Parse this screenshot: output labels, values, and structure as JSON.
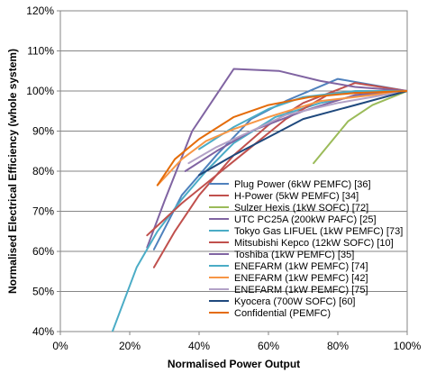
{
  "chart_data": {
    "type": "line",
    "xlabel": "Normalised Power Output",
    "ylabel": "Normalised Electrical Efficiency (whole system)",
    "xlim": [
      0,
      1
    ],
    "ylim": [
      0.4,
      1.2
    ],
    "x_ticks": [
      "0%",
      "20%",
      "40%",
      "60%",
      "80%",
      "100%"
    ],
    "y_ticks": [
      "40%",
      "50%",
      "60%",
      "70%",
      "80%",
      "90%",
      "100%",
      "110%",
      "120%"
    ],
    "grid": "horizontal",
    "legend_position": "inside-right",
    "series": [
      {
        "name": "Plug Power (6kW PEMFC) [36]",
        "color": "#4f81bd",
        "points": [
          [
            0.27,
            0.605
          ],
          [
            0.35,
            0.74
          ],
          [
            0.45,
            0.84
          ],
          [
            0.55,
            0.93
          ],
          [
            0.65,
            0.975
          ],
          [
            0.8,
            1.03
          ],
          [
            1.0,
            1.0
          ]
        ]
      },
      {
        "name": "H-Power (5kW PEMFC) [34]",
        "color": "#c0504d",
        "points": [
          [
            0.27,
            0.56
          ],
          [
            0.33,
            0.65
          ],
          [
            0.4,
            0.74
          ],
          [
            0.5,
            0.84
          ],
          [
            0.6,
            0.915
          ],
          [
            0.7,
            0.97
          ],
          [
            0.85,
            1.02
          ],
          [
            1.0,
            1.0
          ]
        ]
      },
      {
        "name": "Sulzer Hexis (1kW SOFC) [72]",
        "color": "#9bbb59",
        "points": [
          [
            0.73,
            0.82
          ],
          [
            0.83,
            0.925
          ],
          [
            0.9,
            0.965
          ],
          [
            1.0,
            1.0
          ]
        ]
      },
      {
        "name": "UTC PC25A (200kW PAFC) [25]",
        "color": "#8064a2",
        "points": [
          [
            0.25,
            0.61
          ],
          [
            0.3,
            0.725
          ],
          [
            0.38,
            0.9
          ],
          [
            0.5,
            1.055
          ],
          [
            0.63,
            1.05
          ],
          [
            0.75,
            1.025
          ],
          [
            0.85,
            1.01
          ],
          [
            1.0,
            1.0
          ]
        ]
      },
      {
        "name": "Tokyo Gas LIFUEL (1kW PEMFC) [73]",
        "color": "#4bacc6",
        "points": [
          [
            0.15,
            0.4
          ],
          [
            0.22,
            0.56
          ],
          [
            0.28,
            0.65
          ],
          [
            0.35,
            0.73
          ],
          [
            0.42,
            0.8
          ],
          [
            0.5,
            0.87
          ],
          [
            0.62,
            0.935
          ],
          [
            0.75,
            0.97
          ],
          [
            0.87,
            0.99
          ],
          [
            1.0,
            1.0
          ]
        ]
      },
      {
        "name": "Mitsubishi Kepco (12kW SOFC) [10]",
        "color": "#c0504d",
        "points": [
          [
            0.25,
            0.64
          ],
          [
            0.35,
            0.72
          ],
          [
            0.45,
            0.79
          ],
          [
            0.55,
            0.86
          ],
          [
            0.65,
            0.93
          ],
          [
            0.78,
            0.995
          ],
          [
            1.0,
            1.0
          ]
        ]
      },
      {
        "name": "Toshiba (1kW PEMFC) [35]",
        "color": "#8064a2",
        "points": [
          [
            0.36,
            0.8
          ],
          [
            0.45,
            0.85
          ],
          [
            0.55,
            0.9
          ],
          [
            0.7,
            0.95
          ],
          [
            0.85,
            0.99
          ],
          [
            1.0,
            1.0
          ]
        ]
      },
      {
        "name": "ENEFARM (1kW PEMFC) [74]",
        "color": "#4bacc6",
        "points": [
          [
            0.4,
            0.855
          ],
          [
            0.5,
            0.91
          ],
          [
            0.6,
            0.955
          ],
          [
            0.7,
            0.985
          ],
          [
            0.85,
            1.0
          ],
          [
            1.0,
            1.0
          ]
        ]
      },
      {
        "name": "ENEFARM (1kW PEMFC) [42]",
        "color": "#f79646",
        "points": [
          [
            0.28,
            0.765
          ],
          [
            0.35,
            0.83
          ],
          [
            0.42,
            0.875
          ],
          [
            0.5,
            0.905
          ],
          [
            0.6,
            0.935
          ],
          [
            0.75,
            0.975
          ],
          [
            1.0,
            1.0
          ]
        ]
      },
      {
        "name": "ENEFARM (1kW PEMFC) [75]",
        "color": "#b3a2c7",
        "points": [
          [
            0.37,
            0.82
          ],
          [
            0.45,
            0.86
          ],
          [
            0.55,
            0.9
          ],
          [
            0.65,
            0.94
          ],
          [
            0.8,
            0.97
          ],
          [
            1.0,
            1.0
          ]
        ]
      },
      {
        "name": "Kyocera (700W SOFC) [60]",
        "color": "#1f497d",
        "points": [
          [
            0.4,
            0.79
          ],
          [
            0.5,
            0.84
          ],
          [
            0.6,
            0.885
          ],
          [
            0.7,
            0.93
          ],
          [
            0.85,
            0.965
          ],
          [
            1.0,
            1.0
          ]
        ]
      },
      {
        "name": "Confidential (PEMFC)",
        "color": "#e46c0a",
        "points": [
          [
            0.28,
            0.765
          ],
          [
            0.33,
            0.83
          ],
          [
            0.4,
            0.88
          ],
          [
            0.5,
            0.935
          ],
          [
            0.6,
            0.965
          ],
          [
            0.72,
            0.985
          ],
          [
            0.85,
            0.995
          ],
          [
            1.0,
            1.0
          ]
        ]
      }
    ]
  }
}
